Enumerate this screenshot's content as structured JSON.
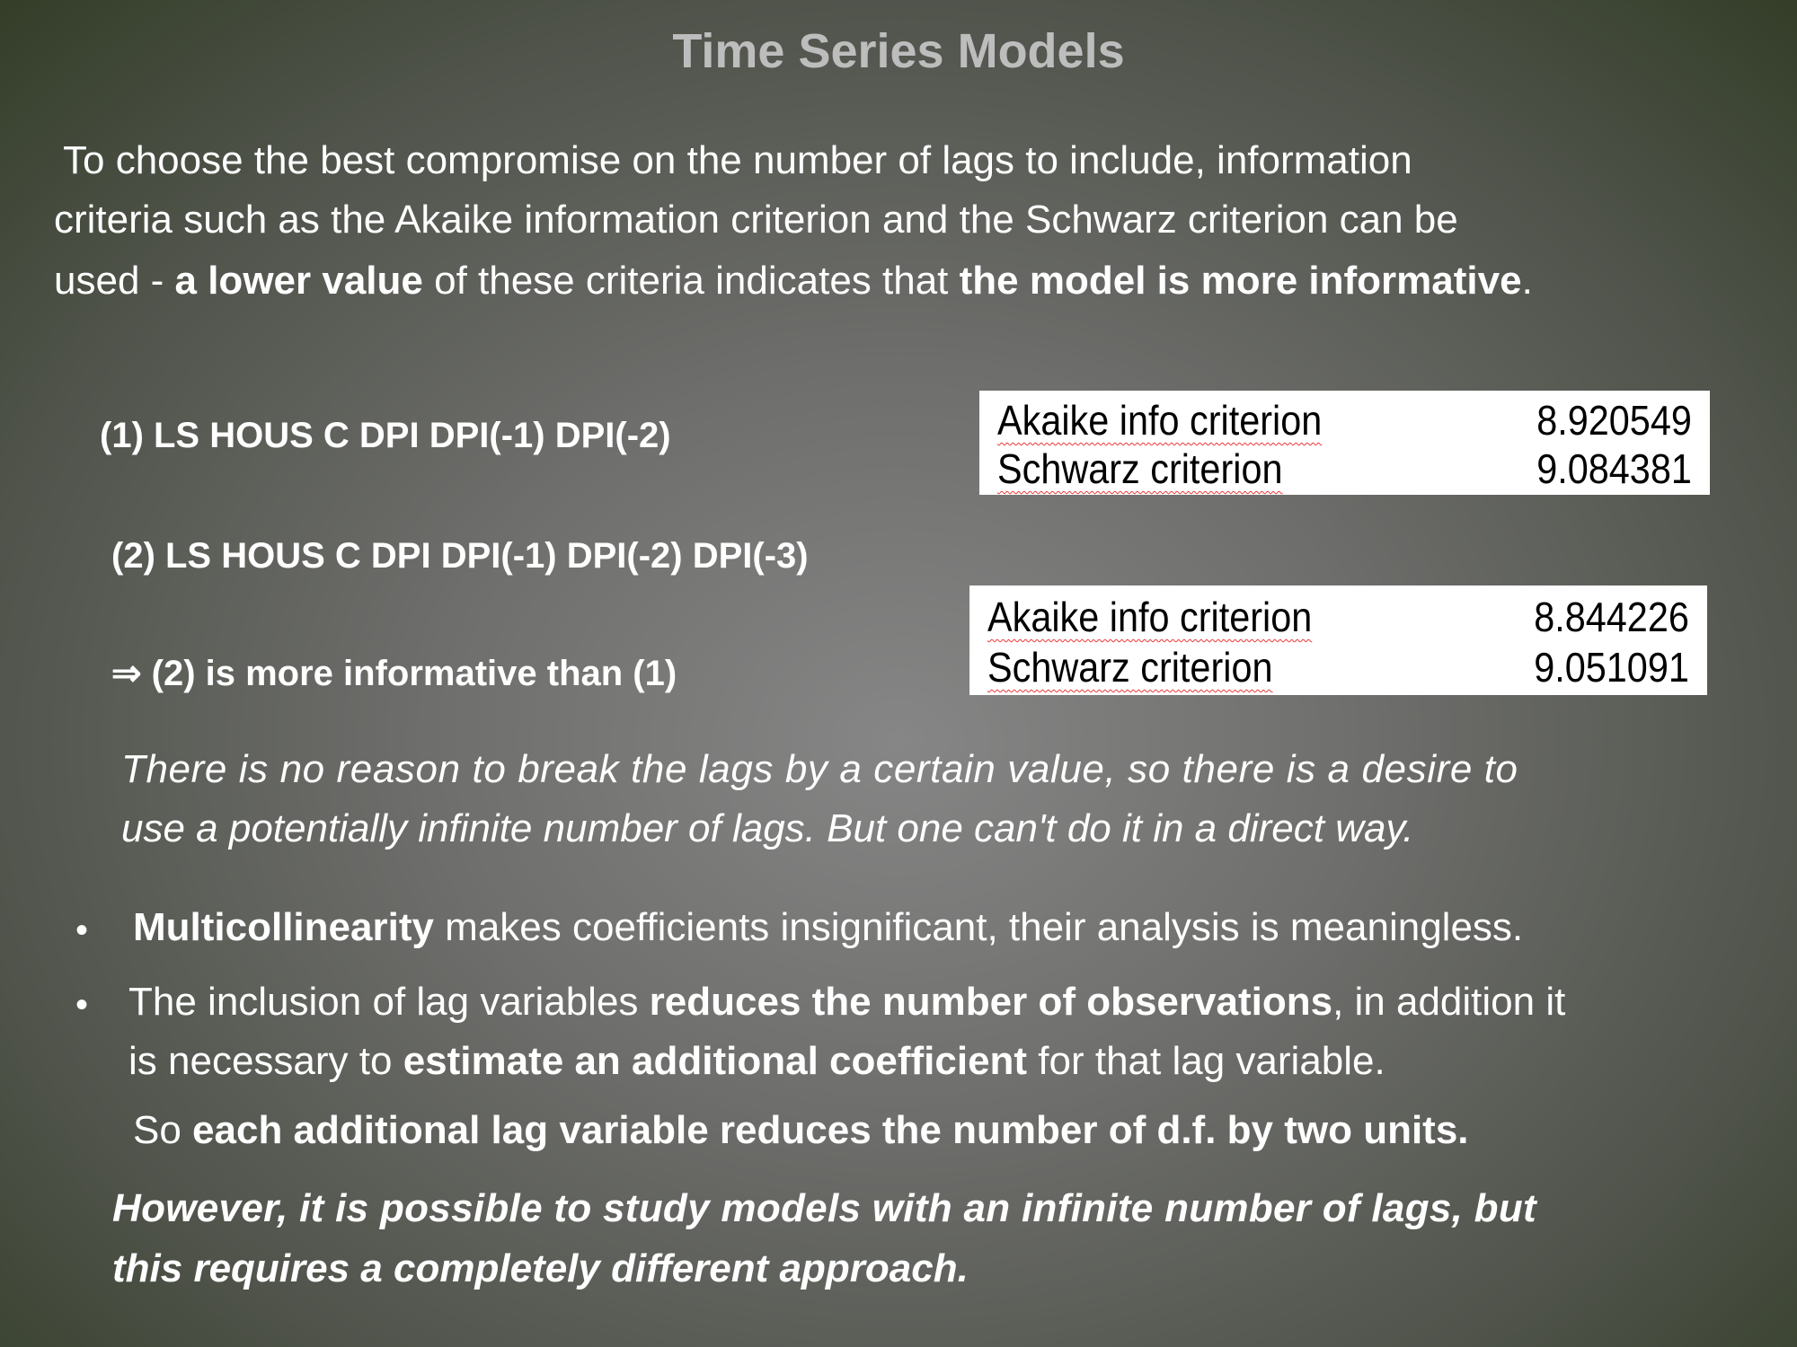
{
  "title": "Time Series Models",
  "intro": {
    "line1": "To choose the best compromise on the number of lags to include, information",
    "line2": "criteria such as the Akaike information criterion and the Schwarz criterion can be",
    "line3_a": "used - ",
    "line3_b": "a lower value",
    "line3_c": " of these criteria indicates that ",
    "line3_d": "the model is more informative",
    "line3_e": "."
  },
  "models": {
    "m1": "(1)  LS HOUS C DPI DPI(-1) DPI(-2)",
    "m2": "(2)  LS HOUS C DPI DPI(-1) DPI(-2) DPI(-3)",
    "conclusion_arrow": "⇒",
    "conclusion": "(2) is more informative than (1)"
  },
  "tables": [
    {
      "rows": [
        {
          "label": "Akaike info criterion",
          "value": "8.920549"
        },
        {
          "label": "Schwarz criterion",
          "value": "9.084381"
        }
      ]
    },
    {
      "rows": [
        {
          "label": "Akaike info criterion",
          "value": "8.844226"
        },
        {
          "label": "Schwarz criterion",
          "value": "9.051091"
        }
      ]
    }
  ],
  "italic_note": {
    "line1": "There is no reason to break the lags by a certain value, so there is a desire to",
    "line2": "use a potentially infinite number of lags. But one can't do it in a direct way."
  },
  "bullets": {
    "b1_a": "Multicollinearity",
    "b1_b": " makes coefficients insignificant, their analysis is meaningless.",
    "b2_l1_a": "The inclusion of lag variables ",
    "b2_l1_b": "reduces the number of observations",
    "b2_l1_c": ", in addition it",
    "b2_l2_a": "is necessary to ",
    "b2_l2_b": "estimate an additional coefficient",
    "b2_l2_c": " for that lag variable.",
    "so_a": "So ",
    "so_b": "each additional lag variable reduces the number of d.f. by two units."
  },
  "closing": {
    "line1": "However, it is possible to study models with an infinite number of lags, but",
    "line2": "this requires a completely different approach."
  }
}
